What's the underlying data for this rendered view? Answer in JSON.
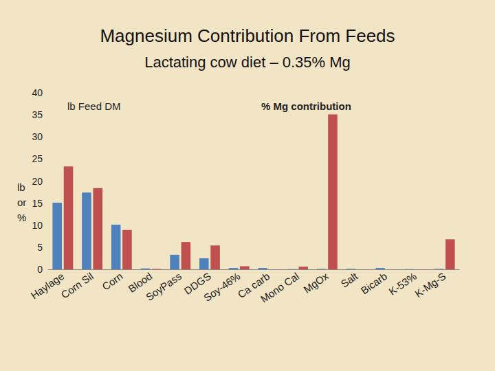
{
  "chart_data": {
    "type": "bar",
    "title": "Magnesium Contribution From Feeds",
    "subtitle": "Lactating cow diet – 0.35% Mg",
    "y_label": "lb or %",
    "categories": [
      "Haylage",
      "Corn Sil",
      "Corn",
      "Blood",
      "SoyPass",
      "DDGS",
      "Soy-46%",
      "Ca carb",
      "Mono Cal",
      "MgOx",
      "Salt",
      "Bicarb",
      "K-53%",
      "K-Mg-S"
    ],
    "series": [
      {
        "name": "lb Feed DM",
        "color": "#4f81bd",
        "values": [
          15.1,
          17.4,
          10.1,
          0.2,
          3.3,
          2.5,
          0.3,
          0.3,
          0.05,
          0.1,
          0.1,
          0.3,
          0.05,
          0.1
        ]
      },
      {
        "name": "% Mg contribution",
        "color": "#c0504d",
        "values": [
          23.3,
          18.4,
          8.9,
          0.1,
          6.2,
          5.4,
          0.7,
          0,
          0.6,
          35.1,
          0,
          0,
          0,
          6.8
        ]
      }
    ],
    "ylim": [
      0,
      40
    ],
    "yticks": [
      0,
      5,
      10,
      15,
      20,
      25,
      30,
      35,
      40
    ],
    "grid": false,
    "legend": "top"
  }
}
